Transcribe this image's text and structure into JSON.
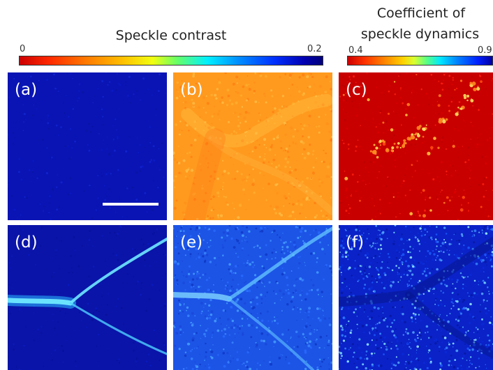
{
  "left_colorbar": {
    "title": "Speckle contrast",
    "min_label": "0",
    "max_label": "0.2"
  },
  "right_colorbar": {
    "title_line1": "Coefficient of",
    "title_line2": "speckle dynamics",
    "min_label": "0.4",
    "max_label": "0.9"
  },
  "panels": [
    {
      "label": "(a)",
      "base_color": "#0a14b4"
    },
    {
      "label": "(b)",
      "base_color": "#ff9a1e"
    },
    {
      "label": "(c)",
      "base_color": "#c80000"
    },
    {
      "label": "(d)",
      "base_color": "#0a14a8"
    },
    {
      "label": "(e)",
      "base_color": "#1c54e6"
    },
    {
      "label": "(f)",
      "base_color": "#0a22c8"
    }
  ],
  "colors": {
    "vessel_cyan": "#6fe8ff",
    "hotspot_yellow": "#ffe060",
    "scalebar": "#ffffff"
  }
}
